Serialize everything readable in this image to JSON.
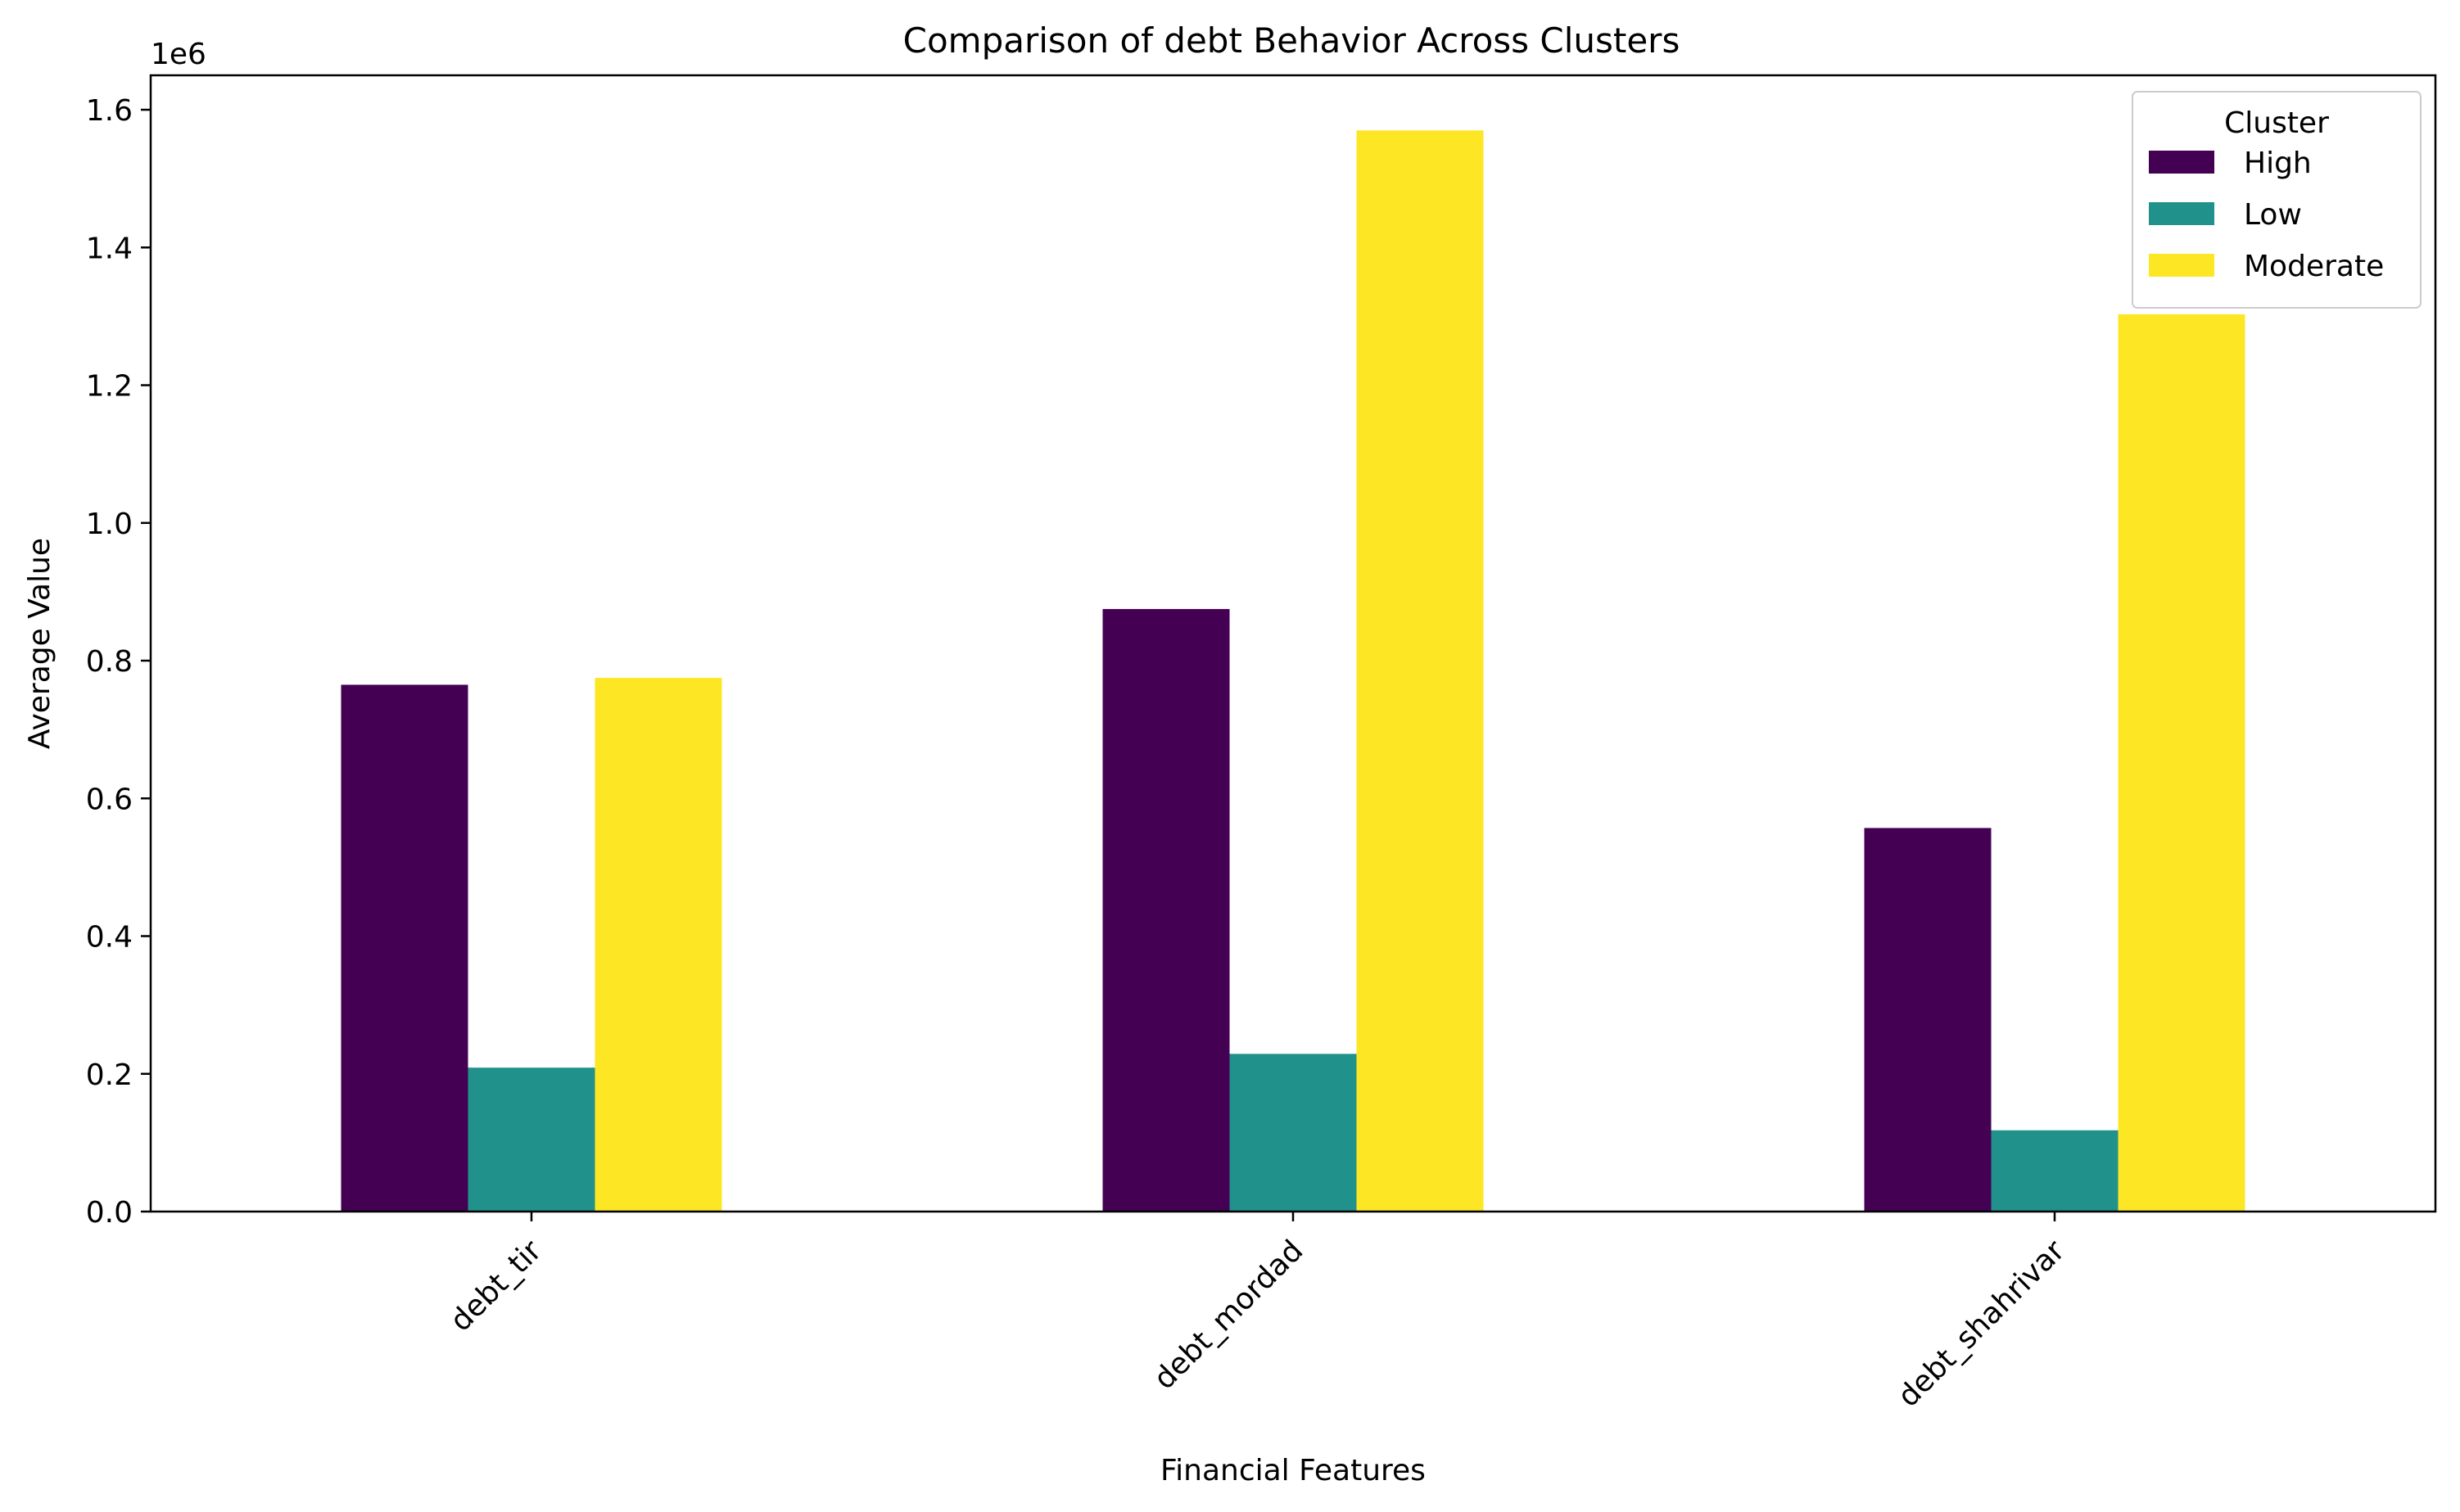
{
  "chart_data": {
    "type": "bar",
    "title": "Comparison of debt Behavior Across Clusters",
    "xlabel": "Financial Features",
    "ylabel": "Average Value",
    "offset_label": "1e6",
    "categories": [
      "debt_tir",
      "debt_mordad",
      "debt_shahrivar"
    ],
    "series": [
      {
        "name": "High",
        "color": "#440154",
        "values": [
          765000,
          875000,
          557000
        ]
      },
      {
        "name": "Low",
        "color": "#21918c",
        "values": [
          209000,
          229000,
          118000
        ]
      },
      {
        "name": "Moderate",
        "color": "#fde725",
        "values": [
          775000,
          1570000,
          1303000
        ]
      }
    ],
    "ylim": [
      0,
      1650000
    ],
    "yticks": [
      "0.0",
      "0.2",
      "0.4",
      "0.6",
      "0.8",
      "1.0",
      "1.2",
      "1.4",
      "1.6"
    ],
    "ytick_values": [
      0,
      200000,
      400000,
      600000,
      800000,
      1000000,
      1200000,
      1400000,
      1600000
    ],
    "legend": {
      "title": "Cluster",
      "placement": "top-right"
    },
    "grid": false
  }
}
